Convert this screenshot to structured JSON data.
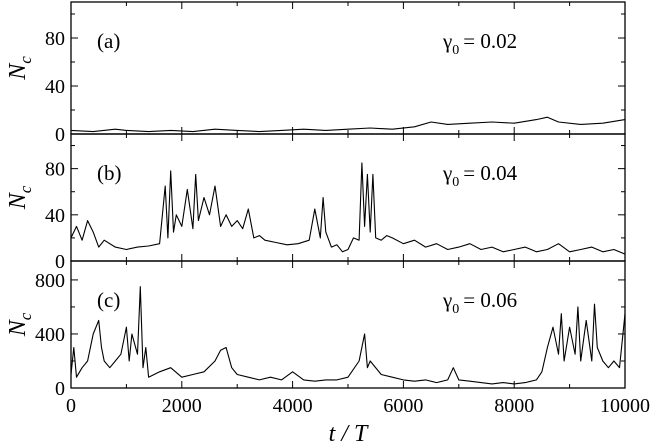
{
  "chart_data": {
    "type": "line",
    "xlabel": "t / T",
    "xlim": [
      0,
      10000
    ],
    "x_ticks": [
      0,
      2000,
      4000,
      6000,
      8000,
      10000
    ],
    "x_tick_labels": [
      "0",
      "2000",
      "4000",
      "6000",
      "8000",
      "10000"
    ],
    "panels": [
      {
        "id": "a",
        "label": "(a)",
        "annotation": "γ0 = 0.02",
        "gamma_symbol": "γ",
        "gamma_sub": "0",
        "gamma_value": "= 0.02",
        "ylabel": "N",
        "ylabel_sub": "c",
        "ylim": [
          0,
          110
        ],
        "y_ticks": [
          0,
          40,
          80
        ],
        "y_tick_labels": [
          "0",
          "40",
          "80"
        ],
        "series": [
          {
            "x": [
              0,
              400,
              800,
              1000,
              1400,
              1800,
              2200,
              2600,
              3000,
              3400,
              3800,
              4200,
              4600,
              5000,
              5400,
              5800,
              6200,
              6500,
              6800,
              7200,
              7600,
              8000,
              8400,
              8600,
              8800,
              9200,
              9600,
              10000
            ],
            "y": [
              3,
              2,
              4,
              3,
              2,
              3,
              2,
              4,
              3,
              2,
              3,
              4,
              3,
              4,
              5,
              4,
              6,
              10,
              8,
              9,
              10,
              9,
              12,
              14,
              10,
              8,
              9,
              12
            ]
          }
        ]
      },
      {
        "id": "b",
        "label": "(b)",
        "annotation": "γ0 = 0.04",
        "gamma_symbol": "γ",
        "gamma_sub": "0",
        "gamma_value": "= 0.04",
        "ylabel": "N",
        "ylabel_sub": "c",
        "ylim": [
          0,
          110
        ],
        "y_ticks": [
          0,
          40,
          80
        ],
        "y_tick_labels": [
          "0",
          "40",
          "80"
        ],
        "series": [
          {
            "x": [
              0,
              100,
              200,
              300,
              400,
              500,
              600,
              800,
              1000,
              1200,
              1400,
              1600,
              1700,
              1750,
              1800,
              1850,
              1900,
              2000,
              2100,
              2200,
              2250,
              2300,
              2400,
              2500,
              2600,
              2700,
              2800,
              2900,
              3000,
              3100,
              3200,
              3300,
              3400,
              3500,
              3700,
              3900,
              4100,
              4300,
              4400,
              4500,
              4550,
              4600,
              4700,
              4800,
              4900,
              5000,
              5100,
              5200,
              5250,
              5300,
              5350,
              5400,
              5450,
              5500,
              5600,
              5700,
              5800,
              6000,
              6200,
              6400,
              6600,
              6800,
              7000,
              7200,
              7400,
              7600,
              7800,
              8000,
              8200,
              8400,
              8600,
              8800,
              9000,
              9200,
              9400,
              9600,
              9800,
              10000
            ],
            "y": [
              20,
              30,
              18,
              35,
              25,
              12,
              18,
              12,
              10,
              12,
              13,
              15,
              65,
              20,
              78,
              25,
              40,
              30,
              62,
              28,
              75,
              35,
              55,
              40,
              65,
              30,
              40,
              30,
              35,
              28,
              45,
              20,
              22,
              18,
              16,
              14,
              15,
              18,
              45,
              20,
              55,
              25,
              12,
              14,
              8,
              10,
              20,
              18,
              85,
              30,
              75,
              25,
              75,
              20,
              18,
              22,
              20,
              15,
              18,
              12,
              15,
              10,
              12,
              15,
              10,
              12,
              8,
              10,
              12,
              8,
              10,
              15,
              8,
              10,
              12,
              8,
              10,
              6
            ]
          }
        ]
      },
      {
        "id": "c",
        "label": "(c)",
        "annotation": "γ0 = 0.06",
        "gamma_symbol": "γ",
        "gamma_sub": "0",
        "gamma_value": "= 0.06",
        "ylabel": "N",
        "ylabel_sub": "c",
        "ylim": [
          0,
          940
        ],
        "y_ticks": [
          0,
          400,
          800
        ],
        "y_tick_labels": [
          "0",
          "400",
          "800"
        ],
        "series": [
          {
            "x": [
              0,
              50,
              100,
              200,
              300,
              400,
              500,
              550,
              600,
              700,
              800,
              900,
              1000,
              1050,
              1100,
              1200,
              1250,
              1300,
              1350,
              1400,
              1600,
              1800,
              2000,
              2200,
              2400,
              2600,
              2700,
              2800,
              2900,
              3000,
              3200,
              3400,
              3600,
              3800,
              4000,
              4200,
              4400,
              4600,
              4800,
              5000,
              5200,
              5300,
              5350,
              5400,
              5600,
              5800,
              6000,
              6200,
              6400,
              6600,
              6800,
              6900,
              7000,
              7200,
              7400,
              7600,
              7800,
              8000,
              8200,
              8400,
              8500,
              8600,
              8700,
              8800,
              8850,
              8900,
              9000,
              9100,
              9150,
              9200,
              9300,
              9400,
              9450,
              9500,
              9600,
              9700,
              9800,
              9900,
              10000
            ],
            "y": [
              100,
              300,
              80,
              150,
              200,
              400,
              500,
              300,
              200,
              150,
              200,
              250,
              450,
              200,
              400,
              250,
              750,
              150,
              300,
              80,
              120,
              150,
              80,
              100,
              120,
              200,
              280,
              300,
              150,
              100,
              80,
              60,
              80,
              60,
              120,
              60,
              50,
              60,
              60,
              80,
              200,
              400,
              150,
              200,
              100,
              80,
              60,
              50,
              60,
              40,
              60,
              150,
              60,
              50,
              40,
              30,
              40,
              30,
              40,
              60,
              120,
              300,
              450,
              250,
              550,
              200,
              450,
              250,
              600,
              200,
              500,
              200,
              620,
              300,
              200,
              150,
              200,
              150,
              550
            ]
          }
        ]
      }
    ]
  }
}
